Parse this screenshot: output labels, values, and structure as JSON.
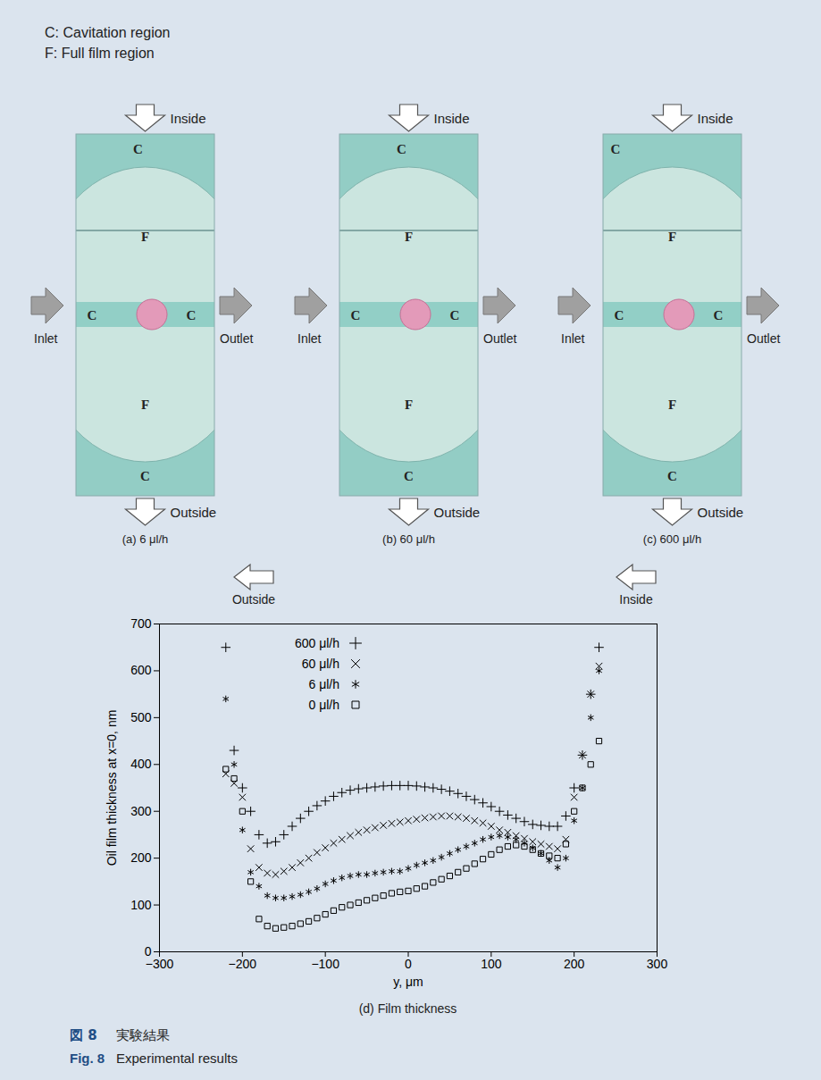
{
  "legend_text": [
    "C: Cavitation region",
    "F: Full film region"
  ],
  "photo_arrows": {
    "top": "Inside",
    "bottom": "Outside",
    "left": "Inlet",
    "right": "Outlet"
  },
  "photos": [
    {
      "caption": "(a) 6 μl/h",
      "labels": {
        "top": "C",
        "upper": "F",
        "left": "C",
        "right": "C",
        "lower": "F",
        "bottom": "C"
      }
    },
    {
      "caption": "(b) 60 μl/h",
      "labels": {
        "top": "C",
        "upper": "F",
        "left": "C",
        "right": "C",
        "lower": "F",
        "bottom": "C"
      }
    },
    {
      "caption": "(c) 600 μl/h",
      "labels": {
        "top": "C",
        "upper": "F",
        "left": "C",
        "right": "C",
        "lower": "F",
        "bottom": "C"
      }
    }
  ],
  "chart_arrows": {
    "left": "Outside",
    "right": "Inside"
  },
  "chart_data": {
    "type": "scatter",
    "title": "(d) Film thickness",
    "x_label": "y, μm",
    "y_label": "Oil film thickness at x=0, nm",
    "xlim": [
      -300,
      300
    ],
    "xticks": [
      {
        "value": -300,
        "label": "−300"
      },
      {
        "value": -200,
        "label": "−200"
      },
      {
        "value": -100,
        "label": "−100"
      },
      0,
      100,
      200,
      300
    ],
    "ylim": [
      0,
      700
    ],
    "yticks": [
      0,
      100,
      200,
      300,
      400,
      500,
      600,
      700
    ],
    "legend": "upper left",
    "x": [
      -220,
      -210,
      -200,
      -190,
      -180,
      -170,
      -160,
      -150,
      -140,
      -130,
      -120,
      -110,
      -100,
      -90,
      -80,
      -70,
      -60,
      -50,
      -40,
      -30,
      -20,
      -10,
      0,
      10,
      20,
      30,
      40,
      50,
      60,
      70,
      80,
      90,
      100,
      110,
      120,
      130,
      140,
      150,
      160,
      170,
      180,
      190,
      200,
      210,
      220,
      230
    ],
    "series": [
      {
        "name": "600 μl/h",
        "color": "#000000",
        "marker": "plus",
        "values": [
          650,
          430,
          350,
          300,
          250,
          232,
          235,
          250,
          268,
          285,
          300,
          312,
          322,
          332,
          340,
          345,
          348,
          350,
          352,
          354,
          355,
          355,
          355,
          354,
          352,
          350,
          347,
          343,
          338,
          332,
          325,
          318,
          310,
          300,
          292,
          285,
          278,
          272,
          270,
          268,
          268,
          290,
          350,
          420,
          550,
          650
        ]
      },
      {
        "name": "60 μl/h",
        "color": "#000000",
        "marker": "times",
        "values": [
          380,
          360,
          330,
          220,
          180,
          168,
          165,
          172,
          180,
          190,
          200,
          212,
          222,
          232,
          240,
          248,
          255,
          260,
          265,
          270,
          274,
          277,
          280,
          283,
          286,
          288,
          290,
          290,
          288,
          285,
          280,
          275,
          268,
          260,
          255,
          248,
          242,
          235,
          230,
          225,
          220,
          240,
          330,
          420,
          550,
          610
        ]
      },
      {
        "name": "6 μl/h",
        "color": "#000000",
        "marker": "asterisk",
        "values": [
          540,
          400,
          260,
          170,
          140,
          120,
          115,
          115,
          118,
          122,
          128,
          135,
          145,
          152,
          158,
          162,
          165,
          165,
          168,
          170,
          172,
          172,
          178,
          185,
          190,
          195,
          202,
          210,
          218,
          225,
          232,
          240,
          245,
          248,
          245,
          240,
          232,
          222,
          210,
          195,
          180,
          200,
          280,
          350,
          500,
          600
        ]
      },
      {
        "name": "0 μl/h",
        "color": "#000000",
        "marker": "square",
        "values": [
          390,
          370,
          300,
          150,
          70,
          55,
          50,
          52,
          55,
          60,
          65,
          72,
          80,
          88,
          95,
          100,
          105,
          110,
          115,
          120,
          125,
          128,
          130,
          135,
          140,
          148,
          155,
          162,
          170,
          178,
          188,
          198,
          208,
          218,
          225,
          228,
          225,
          218,
          210,
          205,
          200,
          230,
          300,
          350,
          400,
          450
        ]
      }
    ]
  },
  "figure_caption": {
    "ja": {
      "number": "図 8",
      "text": "実験結果"
    },
    "en": {
      "number": "Fig. 8",
      "text": "Experimental results"
    }
  }
}
